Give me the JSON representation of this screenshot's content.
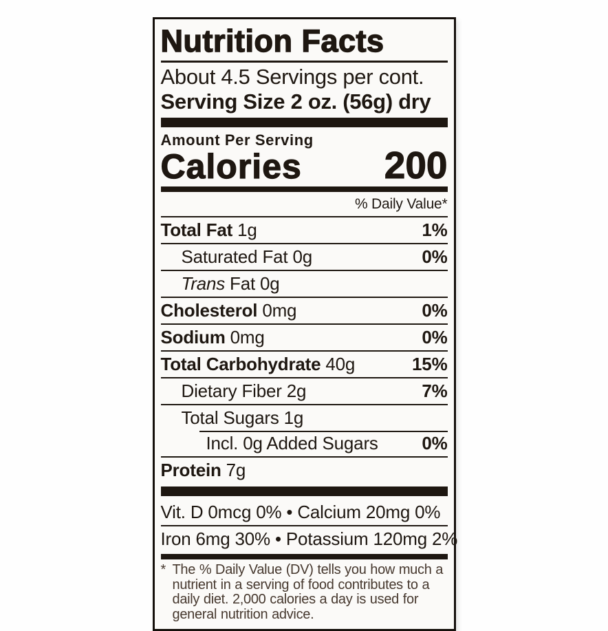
{
  "label": {
    "title": "Nutrition Facts",
    "servings_per_container": "About 4.5 Servings per cont.",
    "serving_size": "Serving Size 2 oz. (56g) dry",
    "amount_per_serving": "Amount Per Serving",
    "calories_label": "Calories",
    "calories_value": "200",
    "daily_value_header": "% Daily Value*",
    "rows": [
      {
        "name": "Total Fat",
        "amount": "1g",
        "dv": "1%"
      },
      {
        "name": "Saturated Fat",
        "amount": "0g",
        "dv": "0%"
      },
      {
        "name_italic": "Trans",
        "name": "Fat",
        "amount": "0g",
        "dv": ""
      },
      {
        "name": "Cholesterol",
        "amount": "0mg",
        "dv": "0%"
      },
      {
        "name": "Sodium",
        "amount": "0mg",
        "dv": "0%"
      },
      {
        "name": "Total Carbohydrate",
        "amount": "40g",
        "dv": "15%"
      },
      {
        "name": "Dietary Fiber",
        "amount": "2g",
        "dv": "7%"
      },
      {
        "name": "Total Sugars",
        "amount": "1g",
        "dv": ""
      },
      {
        "name": "Incl. 0g Added Sugars",
        "amount": "",
        "dv": "0%"
      },
      {
        "name": "Protein",
        "amount": "7g",
        "dv": ""
      }
    ],
    "micronutrients": [
      "Vit. D 0mcg 0% • Calcium 20mg 0%",
      "Iron 6mg 30% • Potassium 120mg 2%"
    ],
    "footnote_marker": "*",
    "footnote": "The % Daily Value (DV) tells you how much a nutrient in a serving of food contributes to a daily diet. 2,000 calories a day is used for general nutrition advice.",
    "colors": {
      "ink": "#1e1711",
      "footnote_ink": "#46382e",
      "paper": "#fbfaf8"
    }
  }
}
